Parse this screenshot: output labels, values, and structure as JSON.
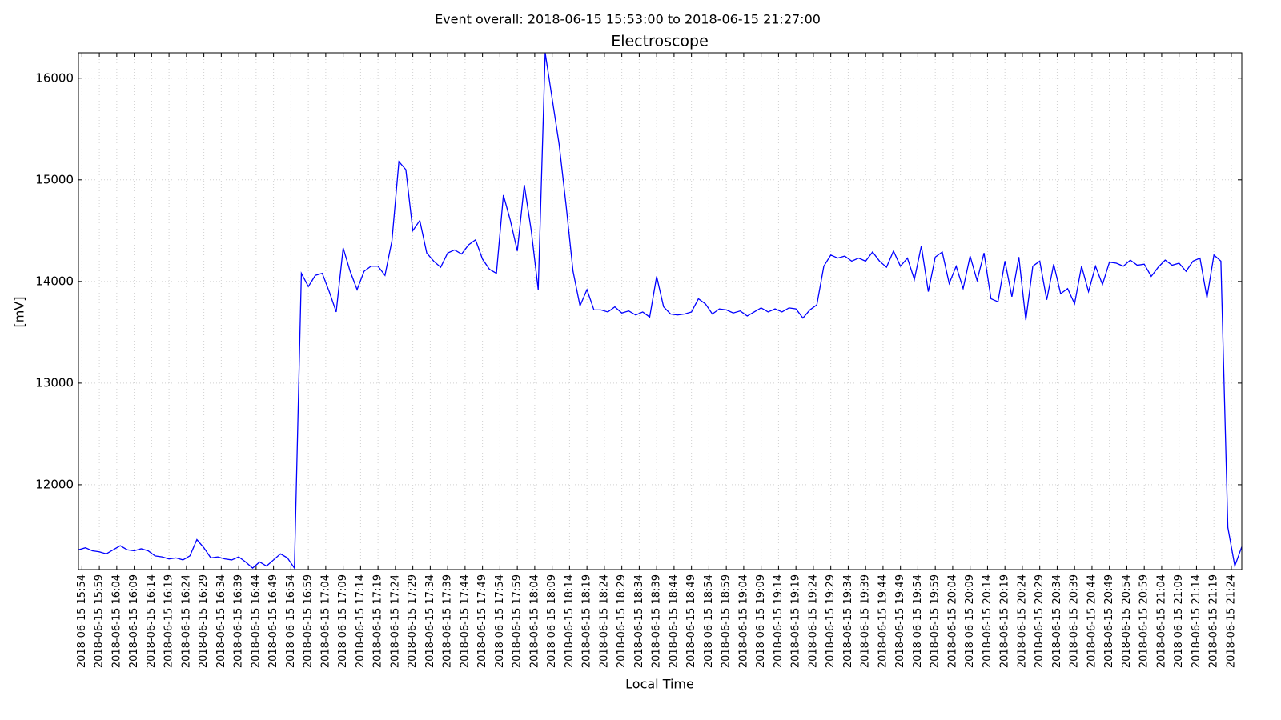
{
  "chart_data": {
    "type": "line",
    "suptitle": "Event overall: 2018-06-15 15:53:00 to 2018-06-15 21:27:00",
    "title": "Electroscope",
    "xlabel": "Local Time",
    "ylabel": "[mV]",
    "color": "#0000ff",
    "grid": true,
    "x": [
      "2018-06-15 15:53",
      "2018-06-15 15:55",
      "2018-06-15 15:57",
      "2018-06-15 15:59",
      "2018-06-15 16:01",
      "2018-06-15 16:03",
      "2018-06-15 16:05",
      "2018-06-15 16:07",
      "2018-06-15 16:09",
      "2018-06-15 16:11",
      "2018-06-15 16:13",
      "2018-06-15 16:15",
      "2018-06-15 16:17",
      "2018-06-15 16:19",
      "2018-06-15 16:21",
      "2018-06-15 16:23",
      "2018-06-15 16:25",
      "2018-06-15 16:27",
      "2018-06-15 16:29",
      "2018-06-15 16:31",
      "2018-06-15 16:33",
      "2018-06-15 16:35",
      "2018-06-15 16:37",
      "2018-06-15 16:39",
      "2018-06-15 16:41",
      "2018-06-15 16:43",
      "2018-06-15 16:45",
      "2018-06-15 16:47",
      "2018-06-15 16:49",
      "2018-06-15 16:51",
      "2018-06-15 16:53",
      "2018-06-15 16:55",
      "2018-06-15 16:57",
      "2018-06-15 16:59",
      "2018-06-15 17:01",
      "2018-06-15 17:03",
      "2018-06-15 17:05",
      "2018-06-15 17:07",
      "2018-06-15 17:09",
      "2018-06-15 17:11",
      "2018-06-15 17:13",
      "2018-06-15 17:15",
      "2018-06-15 17:17",
      "2018-06-15 17:19",
      "2018-06-15 17:21",
      "2018-06-15 17:23",
      "2018-06-15 17:25",
      "2018-06-15 17:27",
      "2018-06-15 17:29",
      "2018-06-15 17:31",
      "2018-06-15 17:33",
      "2018-06-15 17:35",
      "2018-06-15 17:37",
      "2018-06-15 17:39",
      "2018-06-15 17:41",
      "2018-06-15 17:43",
      "2018-06-15 17:45",
      "2018-06-15 17:47",
      "2018-06-15 17:49",
      "2018-06-15 17:51",
      "2018-06-15 17:53",
      "2018-06-15 17:55",
      "2018-06-15 17:57",
      "2018-06-15 17:59",
      "2018-06-15 18:01",
      "2018-06-15 18:03",
      "2018-06-15 18:05",
      "2018-06-15 18:07",
      "2018-06-15 18:09",
      "2018-06-15 18:11",
      "2018-06-15 18:13",
      "2018-06-15 18:15",
      "2018-06-15 18:17",
      "2018-06-15 18:19",
      "2018-06-15 18:21",
      "2018-06-15 18:23",
      "2018-06-15 18:25",
      "2018-06-15 18:27",
      "2018-06-15 18:29",
      "2018-06-15 18:31",
      "2018-06-15 18:33",
      "2018-06-15 18:35",
      "2018-06-15 18:37",
      "2018-06-15 18:39",
      "2018-06-15 18:41",
      "2018-06-15 18:43",
      "2018-06-15 18:45",
      "2018-06-15 18:47",
      "2018-06-15 18:49",
      "2018-06-15 18:51",
      "2018-06-15 18:53",
      "2018-06-15 18:55",
      "2018-06-15 18:57",
      "2018-06-15 18:59",
      "2018-06-15 19:01",
      "2018-06-15 19:03",
      "2018-06-15 19:05",
      "2018-06-15 19:07",
      "2018-06-15 19:09",
      "2018-06-15 19:11",
      "2018-06-15 19:13",
      "2018-06-15 19:15",
      "2018-06-15 19:17",
      "2018-06-15 19:19",
      "2018-06-15 19:21",
      "2018-06-15 19:23",
      "2018-06-15 19:25",
      "2018-06-15 19:27",
      "2018-06-15 19:29",
      "2018-06-15 19:31",
      "2018-06-15 19:33",
      "2018-06-15 19:35",
      "2018-06-15 19:37",
      "2018-06-15 19:39",
      "2018-06-15 19:41",
      "2018-06-15 19:43",
      "2018-06-15 19:45",
      "2018-06-15 19:47",
      "2018-06-15 19:49",
      "2018-06-15 19:51",
      "2018-06-15 19:53",
      "2018-06-15 19:55",
      "2018-06-15 19:57",
      "2018-06-15 19:59",
      "2018-06-15 20:01",
      "2018-06-15 20:03",
      "2018-06-15 20:05",
      "2018-06-15 20:07",
      "2018-06-15 20:09",
      "2018-06-15 20:11",
      "2018-06-15 20:13",
      "2018-06-15 20:15",
      "2018-06-15 20:17",
      "2018-06-15 20:19",
      "2018-06-15 20:21",
      "2018-06-15 20:23",
      "2018-06-15 20:25",
      "2018-06-15 20:27",
      "2018-06-15 20:29",
      "2018-06-15 20:31",
      "2018-06-15 20:33",
      "2018-06-15 20:35",
      "2018-06-15 20:37",
      "2018-06-15 20:39",
      "2018-06-15 20:41",
      "2018-06-15 20:43",
      "2018-06-15 20:45",
      "2018-06-15 20:47",
      "2018-06-15 20:49",
      "2018-06-15 20:51",
      "2018-06-15 20:53",
      "2018-06-15 20:55",
      "2018-06-15 20:57",
      "2018-06-15 20:59",
      "2018-06-15 21:01",
      "2018-06-15 21:03",
      "2018-06-15 21:05",
      "2018-06-15 21:07",
      "2018-06-15 21:09",
      "2018-06-15 21:11",
      "2018-06-15 21:13",
      "2018-06-15 21:15",
      "2018-06-15 21:17",
      "2018-06-15 21:19",
      "2018-06-15 21:21",
      "2018-06-15 21:23",
      "2018-06-15 21:25",
      "2018-06-15 21:27"
    ],
    "values": [
      11360,
      11380,
      11350,
      11340,
      11320,
      11360,
      11400,
      11360,
      11350,
      11370,
      11350,
      11300,
      11290,
      11270,
      11280,
      11260,
      11300,
      11460,
      11380,
      11280,
      11290,
      11270,
      11260,
      11290,
      11240,
      11180,
      11240,
      11200,
      11260,
      11320,
      11280,
      11180,
      14080,
      13950,
      14060,
      14080,
      13900,
      13700,
      14330,
      14100,
      13920,
      14100,
      14150,
      14150,
      14060,
      14400,
      15180,
      15100,
      14500,
      14600,
      14280,
      14200,
      14140,
      14280,
      14310,
      14270,
      14360,
      14410,
      14220,
      14120,
      14080,
      14850,
      14600,
      14300,
      14950,
      14500,
      13920,
      16250,
      15800,
      15350,
      14750,
      14100,
      13760,
      13920,
      13720,
      13720,
      13700,
      13750,
      13690,
      13710,
      13670,
      13700,
      13650,
      14050,
      13750,
      13680,
      13670,
      13680,
      13700,
      13830,
      13780,
      13680,
      13730,
      13720,
      13690,
      13710,
      13660,
      13700,
      13740,
      13700,
      13730,
      13700,
      13740,
      13730,
      13640,
      13720,
      13770,
      14150,
      14260,
      14230,
      14250,
      14200,
      14230,
      14200,
      14290,
      14200,
      14140,
      14300,
      14150,
      14230,
      14020,
      14350,
      13900,
      14240,
      14290,
      13980,
      14150,
      13930,
      14250,
      14010,
      14280,
      13830,
      13800,
      14200,
      13850,
      14240,
      13620,
      14150,
      14200,
      13820,
      14170,
      13880,
      13930,
      13780,
      14150,
      13900,
      14150,
      13970,
      14190,
      14180,
      14150,
      14210,
      14160,
      14170,
      14050,
      14140,
      14210,
      14160,
      14180,
      14100,
      14200,
      14230,
      13840,
      14260,
      14200,
      11580,
      11200,
      11390
    ],
    "xlim": [
      "2018-06-15 15:53",
      "2018-06-15 21:27"
    ],
    "xticks": [
      "2018-06-15 15:54",
      "2018-06-15 15:59",
      "2018-06-15 16:04",
      "2018-06-15 16:09",
      "2018-06-15 16:14",
      "2018-06-15 16:19",
      "2018-06-15 16:24",
      "2018-06-15 16:29",
      "2018-06-15 16:34",
      "2018-06-15 16:39",
      "2018-06-15 16:44",
      "2018-06-15 16:49",
      "2018-06-15 16:54",
      "2018-06-15 16:59",
      "2018-06-15 17:04",
      "2018-06-15 17:09",
      "2018-06-15 17:14",
      "2018-06-15 17:19",
      "2018-06-15 17:24",
      "2018-06-15 17:29",
      "2018-06-15 17:34",
      "2018-06-15 17:39",
      "2018-06-15 17:44",
      "2018-06-15 17:49",
      "2018-06-15 17:54",
      "2018-06-15 17:59",
      "2018-06-15 18:04",
      "2018-06-15 18:09",
      "2018-06-15 18:14",
      "2018-06-15 18:19",
      "2018-06-15 18:24",
      "2018-06-15 18:29",
      "2018-06-15 18:34",
      "2018-06-15 18:39",
      "2018-06-15 18:44",
      "2018-06-15 18:49",
      "2018-06-15 18:54",
      "2018-06-15 18:59",
      "2018-06-15 19:04",
      "2018-06-15 19:09",
      "2018-06-15 19:14",
      "2018-06-15 19:19",
      "2018-06-15 19:24",
      "2018-06-15 19:29",
      "2018-06-15 19:34",
      "2018-06-15 19:39",
      "2018-06-15 19:44",
      "2018-06-15 19:49",
      "2018-06-15 19:54",
      "2018-06-15 19:59",
      "2018-06-15 20:04",
      "2018-06-15 20:09",
      "2018-06-15 20:14",
      "2018-06-15 20:19",
      "2018-06-15 20:24",
      "2018-06-15 20:29",
      "2018-06-15 20:34",
      "2018-06-15 20:39",
      "2018-06-15 20:44",
      "2018-06-15 20:49",
      "2018-06-15 20:54",
      "2018-06-15 20:59",
      "2018-06-15 21:04",
      "2018-06-15 21:09",
      "2018-06-15 21:14",
      "2018-06-15 21:19",
      "2018-06-15 21:24"
    ],
    "ylim": [
      11165,
      16250
    ],
    "yticks": [
      12000,
      13000,
      14000,
      15000,
      16000
    ]
  }
}
